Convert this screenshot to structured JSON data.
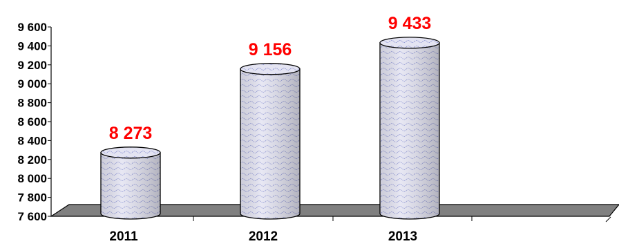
{
  "chart_data": {
    "type": "bar",
    "style": "3d-cylinder",
    "title": "",
    "xlabel": "",
    "ylabel": "",
    "categories": [
      "2011",
      "2012",
      "2013"
    ],
    "values": [
      8273,
      9156,
      9433
    ],
    "data_labels": [
      "8 273",
      "9 156",
      "9 433"
    ],
    "ylim": [
      7600,
      9600
    ],
    "yticks": [
      7600,
      7800,
      8000,
      8200,
      8400,
      8600,
      8800,
      9000,
      9200,
      9400,
      9600
    ],
    "ytick_labels": [
      "7 600",
      "7 800",
      "8 000",
      "8 200",
      "8 400",
      "8 600",
      "8 800",
      "9 000",
      "9 200",
      "9 400",
      "9 600"
    ],
    "grid": false,
    "legend": "none",
    "colors": {
      "bar_fill": "#d9d9ee",
      "bar_pattern": "#9aa0d8",
      "floor": "#808080",
      "data_label": "#ff0000",
      "text": "#000000"
    }
  }
}
